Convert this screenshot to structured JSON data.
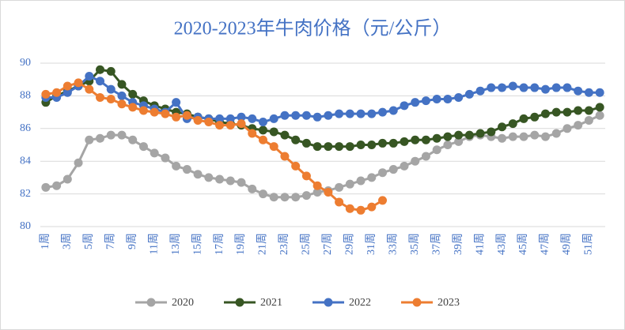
{
  "chart_data": {
    "type": "line",
    "title": "2020-2023年牛肉价格（元/公斤）",
    "categories": [
      "1周",
      null,
      "3周",
      null,
      "5周",
      null,
      "7周",
      null,
      "9周",
      null,
      "11周",
      null,
      "13周",
      null,
      "15周",
      null,
      "17周",
      null,
      "19周",
      null,
      "21周",
      null,
      "23周",
      null,
      "25周",
      null,
      "27周",
      null,
      "29周",
      null,
      "31周",
      null,
      "33周",
      null,
      "35周",
      null,
      "37周",
      null,
      "39周",
      null,
      "41周",
      null,
      "43周",
      null,
      "45周",
      null,
      "47周",
      null,
      "49周",
      null,
      "51周",
      null
    ],
    "series": [
      {
        "name": "2020",
        "color": "#a5a5a5",
        "values": [
          82.4,
          82.5,
          82.9,
          83.9,
          85.3,
          85.4,
          85.6,
          85.6,
          85.3,
          84.9,
          84.5,
          84.2,
          83.7,
          83.5,
          83.2,
          83.0,
          82.9,
          82.8,
          82.7,
          82.3,
          82.0,
          81.8,
          81.8,
          81.8,
          81.9,
          82.1,
          82.2,
          82.4,
          82.6,
          82.8,
          83.0,
          83.3,
          83.5,
          83.7,
          84.0,
          84.3,
          84.7,
          85.0,
          85.2,
          85.5,
          85.6,
          85.5,
          85.4,
          85.5,
          85.5,
          85.6,
          85.5,
          85.7,
          86.0,
          86.2,
          86.5,
          86.8
        ]
      },
      {
        "name": "2021",
        "color": "#375623",
        "values": [
          87.6,
          88.0,
          88.3,
          88.6,
          88.9,
          89.6,
          89.5,
          88.7,
          88.1,
          87.7,
          87.4,
          87.2,
          87.0,
          86.9,
          86.7,
          86.6,
          86.4,
          86.3,
          86.2,
          86.0,
          85.9,
          85.8,
          85.6,
          85.3,
          85.1,
          84.9,
          84.9,
          84.9,
          84.9,
          85.0,
          85.0,
          85.1,
          85.1,
          85.2,
          85.3,
          85.3,
          85.4,
          85.5,
          85.6,
          85.6,
          85.7,
          85.8,
          86.1,
          86.3,
          86.6,
          86.7,
          86.9,
          87.0,
          87.0,
          87.1,
          87.1,
          87.3
        ]
      },
      {
        "name": "2022",
        "color": "#4472c4",
        "values": [
          87.9,
          87.9,
          88.2,
          88.6,
          89.2,
          88.9,
          88.4,
          88.0,
          87.6,
          87.4,
          87.2,
          87.0,
          87.6,
          86.6,
          86.7,
          86.6,
          86.6,
          86.6,
          86.7,
          86.6,
          86.4,
          86.6,
          86.8,
          86.8,
          86.8,
          86.7,
          86.8,
          86.9,
          86.9,
          86.9,
          86.9,
          87.0,
          87.1,
          87.4,
          87.6,
          87.7,
          87.8,
          87.8,
          87.9,
          88.1,
          88.3,
          88.5,
          88.5,
          88.6,
          88.5,
          88.5,
          88.4,
          88.5,
          88.5,
          88.3,
          88.2,
          88.2
        ]
      },
      {
        "name": "2023",
        "color": "#ed7d31",
        "values": [
          88.1,
          88.2,
          88.6,
          88.8,
          88.4,
          87.9,
          87.8,
          87.5,
          87.3,
          87.1,
          87.0,
          86.9,
          86.7,
          86.8,
          86.5,
          86.4,
          86.2,
          86.2,
          86.3,
          85.7,
          85.3,
          84.9,
          84.3,
          83.7,
          83.1,
          82.5,
          82.1,
          81.5,
          81.1,
          81.0,
          81.2,
          81.6,
          null,
          null,
          null,
          null,
          null,
          null,
          null,
          null,
          null,
          null,
          null,
          null,
          null,
          null,
          null,
          null,
          null,
          null,
          null,
          null
        ]
      }
    ],
    "ylim": [
      80,
      90
    ],
    "yticks": [
      80,
      82,
      84,
      86,
      88,
      90
    ],
    "grid": true,
    "legend": "bottom"
  }
}
